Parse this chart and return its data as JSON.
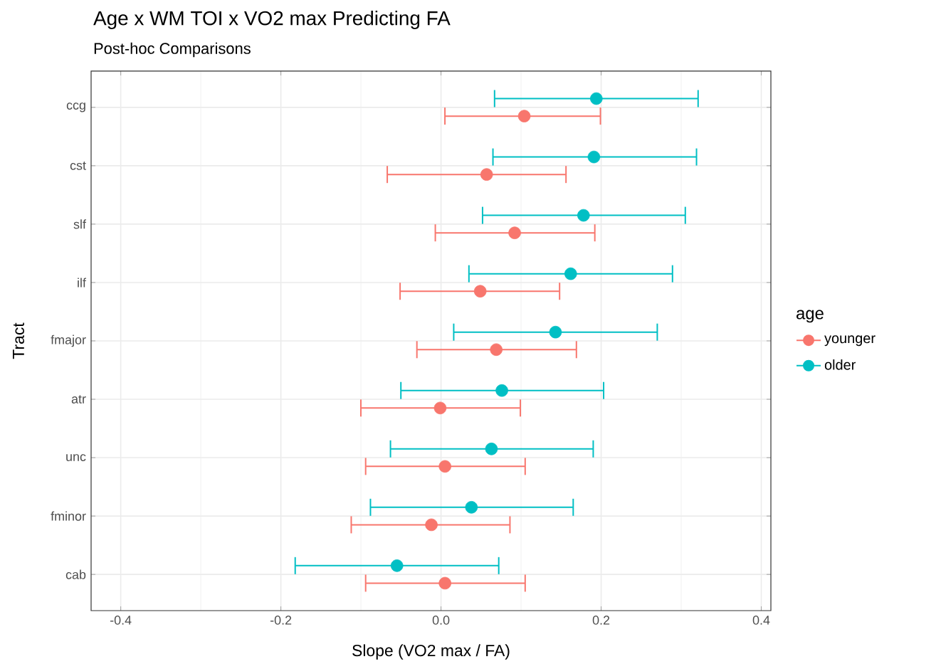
{
  "chart_data": {
    "type": "scatter",
    "orientation": "horizontal",
    "title": "Age x WM TOI x VO2 max Predicting FA",
    "subtitle": "Post-hoc Comparisons",
    "xlabel": "Slope (VO2 max / FA)",
    "ylabel": "Tract",
    "legend_title": "age",
    "categories": [
      "ccg",
      "cst",
      "slf",
      "ilf",
      "fmajor",
      "atr",
      "unc",
      "fminor",
      "cab"
    ],
    "series": [
      {
        "name": "younger",
        "color": "#f8766d",
        "values": [
          0.104,
          0.057,
          0.092,
          0.049,
          0.069,
          -0.001,
          0.005,
          -0.012,
          0.005
        ],
        "errors": [
          [
            0.004,
            0.2
          ],
          [
            -0.068,
            0.157
          ],
          [
            -0.008,
            0.193
          ],
          [
            -0.052,
            0.149
          ],
          [
            -0.031,
            0.17
          ],
          [
            -0.101,
            0.1
          ],
          [
            -0.095,
            0.106
          ],
          [
            -0.113,
            0.087
          ],
          [
            -0.095,
            0.106
          ]
        ]
      },
      {
        "name": "older",
        "color": "#00bfc4",
        "values": [
          0.194,
          0.191,
          0.178,
          0.162,
          0.143,
          0.076,
          0.063,
          0.038,
          -0.055
        ],
        "errors": [
          [
            0.066,
            0.322
          ],
          [
            0.064,
            0.32
          ],
          [
            0.051,
            0.306
          ],
          [
            0.034,
            0.29
          ],
          [
            0.015,
            0.271
          ],
          [
            -0.051,
            0.204
          ],
          [
            -0.064,
            0.191
          ],
          [
            -0.089,
            0.166
          ],
          [
            -0.183,
            0.073
          ]
        ]
      }
    ],
    "xlim": [
      -0.437,
      0.412
    ],
    "xticks": [
      -0.4,
      -0.2,
      {
        "value": 0,
        "label": "0.0"
      },
      0.2,
      0.4
    ],
    "grid": true,
    "legend": "right",
    "marker": "circle"
  }
}
